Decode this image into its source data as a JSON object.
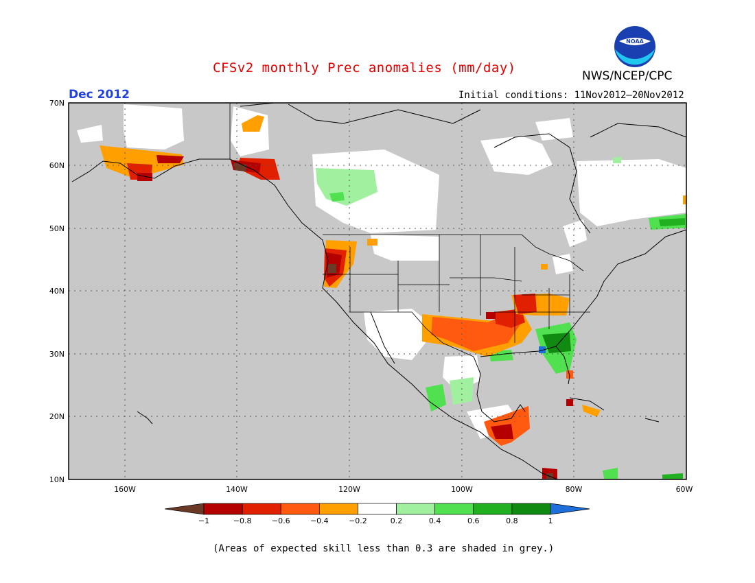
{
  "title": "CFSv2 monthly Prec anomalies (mm/day)",
  "agency": "NWS/NCEP/CPC",
  "logo_text": "NOAA",
  "month": "Dec 2012",
  "initial_conditions": "Initial conditions: 11Nov2012–20Nov2012",
  "footnote": "(Areas of expected skill less than 0.3 are shaded in grey.)",
  "lat_labels": [
    "70N",
    "60N",
    "50N",
    "40N",
    "30N",
    "20N",
    "10N"
  ],
  "lon_labels": [
    "160W",
    "140W",
    "120W",
    "100W",
    "80W",
    "60W"
  ],
  "colorbar": {
    "ticks": [
      "−1",
      "−0.8",
      "−0.6",
      "−0.4",
      "−0.2",
      "0.2",
      "0.4",
      "0.6",
      "0.8",
      "1"
    ],
    "colors": [
      "#6b3a26",
      "#b40000",
      "#e02000",
      "#ff5a10",
      "#ffa000",
      "#ffffff",
      "#a0f0a0",
      "#50e050",
      "#20b020",
      "#108a10",
      "#1e6edc"
    ]
  },
  "colors": {
    "grey_mask": "#c8c8c8",
    "title": "#e00000",
    "month": "#2040e0"
  }
}
